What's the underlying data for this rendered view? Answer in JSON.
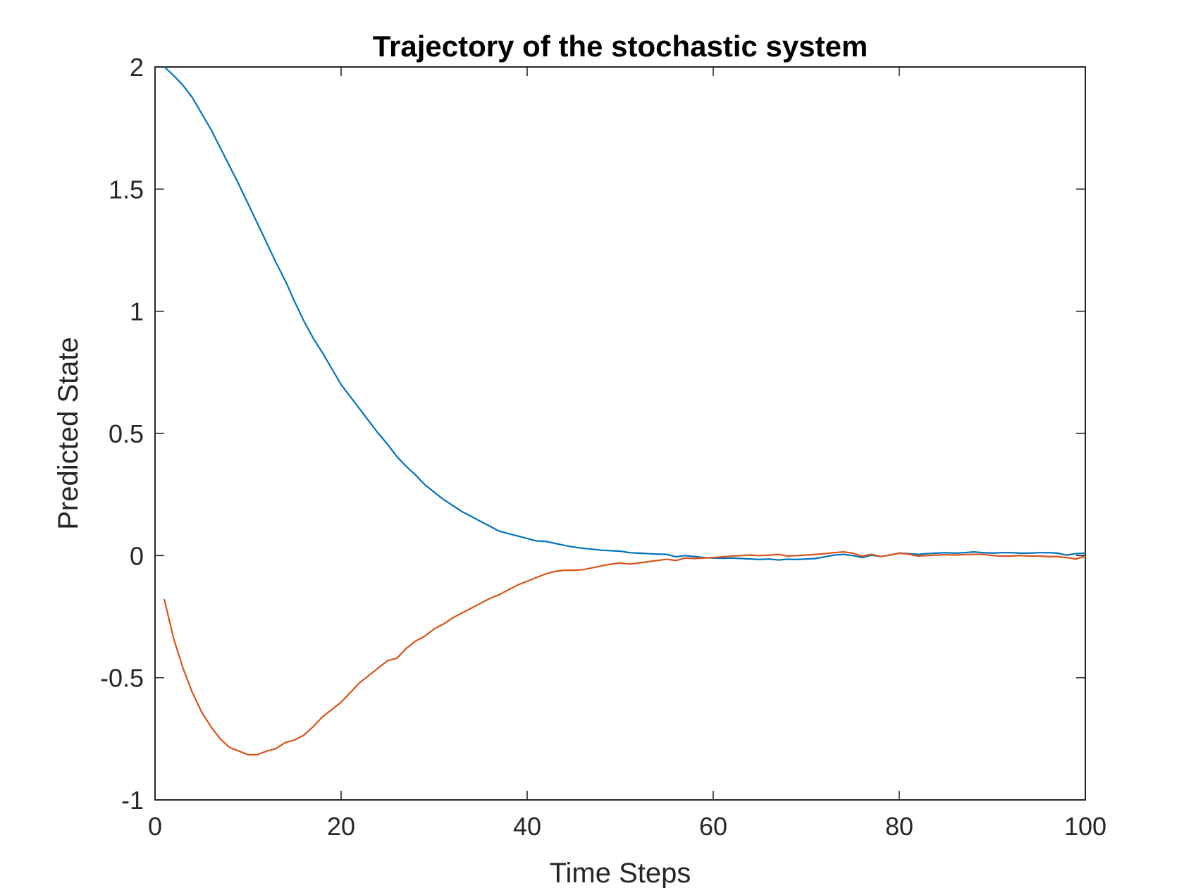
{
  "chart_data": {
    "type": "line",
    "title": "Trajectory of the stochastic system",
    "xlabel": "Time Steps",
    "ylabel": "Predicted State",
    "xlim": [
      0,
      100
    ],
    "ylim": [
      -1,
      2
    ],
    "xticks": [
      0,
      20,
      40,
      60,
      80,
      100
    ],
    "yticks": [
      -1,
      -0.5,
      0,
      0.5,
      1,
      1.5,
      2
    ],
    "xtick_labels": [
      "0",
      "20",
      "40",
      "60",
      "80",
      "100"
    ],
    "ytick_labels": [
      "-1",
      "-0.5",
      "0",
      "0.5",
      "1",
      "1.5",
      "2"
    ],
    "grid": false,
    "legend": false,
    "x": [
      1,
      2,
      3,
      4,
      5,
      6,
      7,
      8,
      9,
      10,
      11,
      12,
      13,
      14,
      15,
      16,
      17,
      18,
      19,
      20,
      21,
      22,
      23,
      24,
      25,
      26,
      27,
      28,
      29,
      30,
      31,
      32,
      33,
      34,
      35,
      36,
      37,
      38,
      39,
      40,
      41,
      42,
      43,
      44,
      45,
      46,
      47,
      48,
      49,
      50,
      51,
      52,
      53,
      54,
      55,
      56,
      57,
      58,
      59,
      60,
      61,
      62,
      63,
      64,
      65,
      66,
      67,
      68,
      69,
      70,
      71,
      72,
      73,
      74,
      75,
      76,
      77,
      78,
      79,
      80,
      81,
      82,
      83,
      84,
      85,
      86,
      87,
      88,
      89,
      90,
      91,
      92,
      93,
      94,
      95,
      96,
      97,
      98,
      99,
      100
    ],
    "series": [
      {
        "color": "#0072BD",
        "values": [
          2.0,
          1.965,
          1.925,
          1.875,
          1.81,
          1.745,
          1.67,
          1.595,
          1.52,
          1.44,
          1.36,
          1.28,
          1.2,
          1.125,
          1.04,
          0.96,
          0.89,
          0.83,
          0.765,
          0.7,
          0.65,
          0.6,
          0.55,
          0.5,
          0.455,
          0.405,
          0.365,
          0.33,
          0.29,
          0.26,
          0.23,
          0.205,
          0.18,
          0.16,
          0.14,
          0.12,
          0.1,
          0.09,
          0.08,
          0.07,
          0.06,
          0.058,
          0.05,
          0.042,
          0.035,
          0.03,
          0.026,
          0.022,
          0.02,
          0.018,
          0.012,
          0.01,
          0.008,
          0.006,
          0.005,
          -0.005,
          0.0,
          -0.004,
          -0.008,
          -0.01,
          -0.011,
          -0.01,
          -0.012,
          -0.014,
          -0.016,
          -0.014,
          -0.018,
          -0.015,
          -0.016,
          -0.014,
          -0.012,
          -0.005,
          0.002,
          0.005,
          0.0,
          -0.008,
          0.002,
          -0.004,
          0.002,
          0.01,
          0.008,
          0.005,
          0.008,
          0.01,
          0.012,
          0.01,
          0.012,
          0.015,
          0.012,
          0.01,
          0.012,
          0.012,
          0.01,
          0.01,
          0.012,
          0.012,
          0.01,
          0.002,
          0.008,
          0.01
        ]
      },
      {
        "color": "#D95319",
        "values": [
          -0.18,
          -0.34,
          -0.46,
          -0.56,
          -0.64,
          -0.7,
          -0.75,
          -0.785,
          -0.8,
          -0.815,
          -0.815,
          -0.8,
          -0.79,
          -0.765,
          -0.755,
          -0.735,
          -0.7,
          -0.66,
          -0.63,
          -0.6,
          -0.56,
          -0.52,
          -0.49,
          -0.46,
          -0.43,
          -0.42,
          -0.38,
          -0.35,
          -0.33,
          -0.3,
          -0.28,
          -0.255,
          -0.235,
          -0.215,
          -0.195,
          -0.175,
          -0.16,
          -0.14,
          -0.12,
          -0.105,
          -0.09,
          -0.075,
          -0.065,
          -0.06,
          -0.06,
          -0.058,
          -0.05,
          -0.042,
          -0.035,
          -0.03,
          -0.035,
          -0.03,
          -0.025,
          -0.02,
          -0.015,
          -0.02,
          -0.01,
          -0.012,
          -0.01,
          -0.008,
          -0.005,
          -0.002,
          0.0,
          0.002,
          0.0,
          0.002,
          0.005,
          -0.002,
          0.0,
          0.002,
          0.005,
          0.008,
          0.012,
          0.015,
          0.01,
          -0.002,
          0.005,
          -0.004,
          0.002,
          0.01,
          0.006,
          -0.002,
          0.0,
          0.002,
          0.004,
          0.002,
          0.004,
          0.005,
          0.005,
          0.0,
          -0.002,
          -0.002,
          0.0,
          -0.002,
          -0.002,
          -0.004,
          -0.004,
          -0.008,
          -0.014,
          -0.002
        ]
      }
    ]
  }
}
